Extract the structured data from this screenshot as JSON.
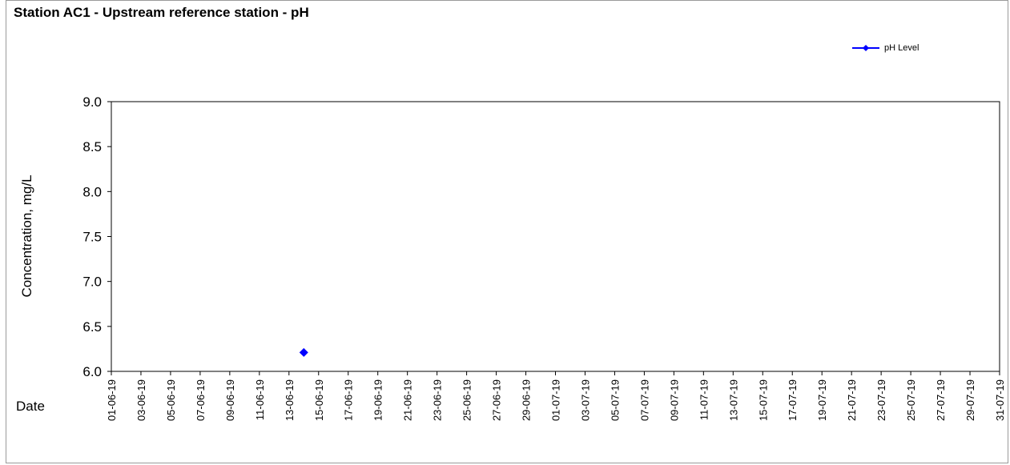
{
  "chart_data": {
    "type": "scatter",
    "title": "Station AC1 - Upstream reference station - pH",
    "xlabel": "Date",
    "ylabel": "Concentration, mg/L",
    "ylim": [
      6.0,
      9.0
    ],
    "y_ticks": [
      "6.0",
      "6.5",
      "7.0",
      "7.5",
      "8.0",
      "8.5",
      "9.0"
    ],
    "xlim": [
      "01-06-19",
      "31-07-19"
    ],
    "x_ticks": [
      "01-06-19",
      "03-06-19",
      "05-06-19",
      "07-06-19",
      "09-06-19",
      "11-06-19",
      "13-06-19",
      "15-06-19",
      "17-06-19",
      "19-06-19",
      "21-06-19",
      "23-06-19",
      "25-06-19",
      "27-06-19",
      "29-06-19",
      "01-07-19",
      "03-07-19",
      "05-07-19",
      "07-07-19",
      "09-07-19",
      "11-07-19",
      "13-07-19",
      "15-07-19",
      "17-07-19",
      "19-07-19",
      "21-07-19",
      "23-07-19",
      "25-07-19",
      "27-07-19",
      "29-07-19",
      "31-07-19"
    ],
    "grid": false,
    "legend_position": "top-right",
    "series": [
      {
        "name": "pH Level",
        "color": "#0000ff",
        "marker": "diamond",
        "points": [
          {
            "x": "14-06-19",
            "y": 6.21
          }
        ]
      }
    ]
  }
}
